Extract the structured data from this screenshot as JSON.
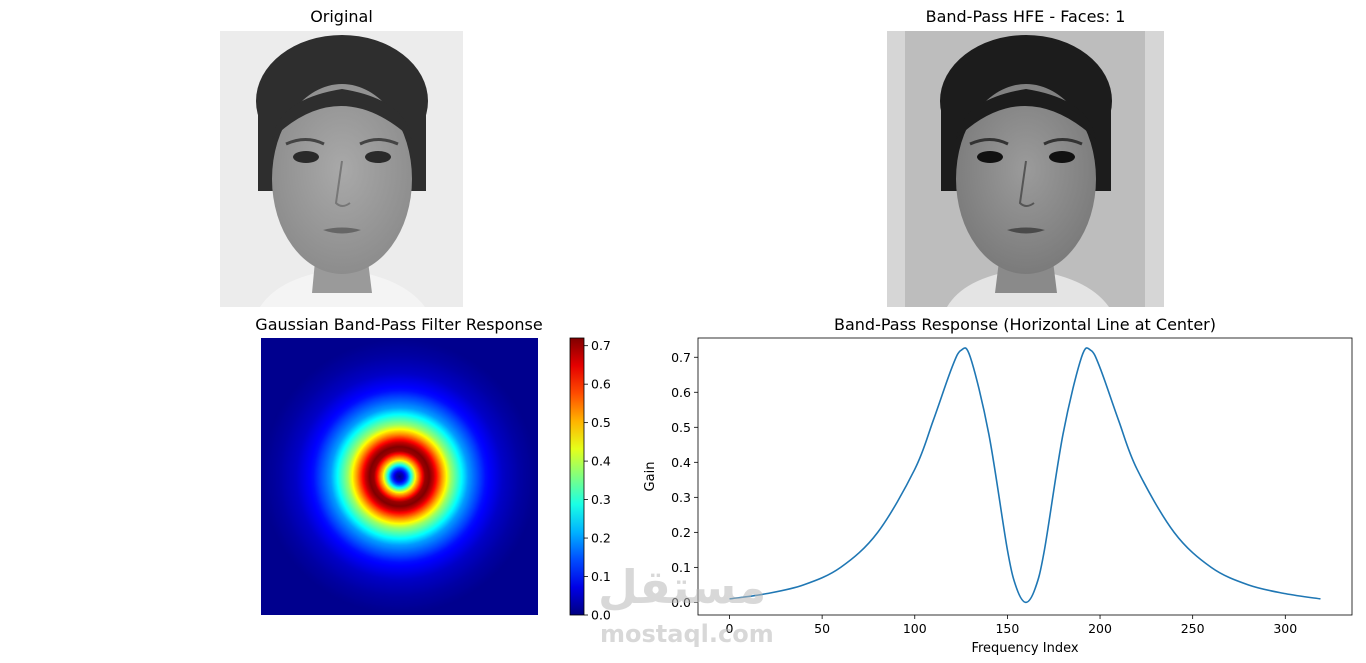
{
  "panels": {
    "original": {
      "title": "Original"
    },
    "enhanced": {
      "title": "Band-Pass HFE - Faces: 1"
    },
    "heatmap": {
      "title": "Gaussian Band-Pass Filter Response"
    },
    "line": {
      "title": "Band-Pass Response (Horizontal Line at Center)"
    }
  },
  "watermark": {
    "arabic": "مستقل",
    "latin": "mostaql.com"
  },
  "chart_data": [
    {
      "type": "heatmap",
      "title": "Gaussian Band-Pass Filter Response",
      "colormap": "jet",
      "colorbar": {
        "ticks": [
          0.0,
          0.1,
          0.2,
          0.3,
          0.4,
          0.5,
          0.6,
          0.7
        ],
        "tick_labels": [
          "0.0",
          "0.1",
          "0.2",
          "0.3",
          "0.4",
          "0.5",
          "0.6",
          "0.7"
        ],
        "vmin": 0.0,
        "vmax": 0.72
      },
      "peak_value": 0.72,
      "peak_radius_index": 35,
      "grid": false
    },
    {
      "type": "line",
      "title": "Band-Pass Response (Horizontal Line at Center)",
      "xlabel": "Frequency Index",
      "ylabel": "Gain",
      "xlim": [
        -17,
        336
      ],
      "ylim": [
        -0.036,
        0.755
      ],
      "xticks": [
        0,
        50,
        100,
        150,
        200,
        250,
        300
      ],
      "yticks": [
        0.0,
        0.1,
        0.2,
        0.3,
        0.4,
        0.5,
        0.6,
        0.7
      ],
      "ytick_labels": [
        "0.0",
        "0.1",
        "0.2",
        "0.3",
        "0.4",
        "0.5",
        "0.6",
        "0.7"
      ],
      "series": [
        {
          "color": "#1f77b4",
          "x": [
            0,
            20,
            40,
            60,
            80,
            100,
            110,
            120,
            125,
            130,
            140,
            150,
            155,
            160,
            165,
            170,
            180,
            190,
            195,
            200,
            210,
            220,
            240,
            260,
            280,
            300,
            319
          ],
          "y": [
            0.01,
            0.025,
            0.05,
            0.1,
            0.2,
            0.38,
            0.52,
            0.67,
            0.72,
            0.7,
            0.48,
            0.15,
            0.04,
            0.0,
            0.04,
            0.15,
            0.48,
            0.7,
            0.72,
            0.67,
            0.52,
            0.38,
            0.2,
            0.1,
            0.05,
            0.025,
            0.01
          ]
        }
      ],
      "grid": false
    }
  ]
}
